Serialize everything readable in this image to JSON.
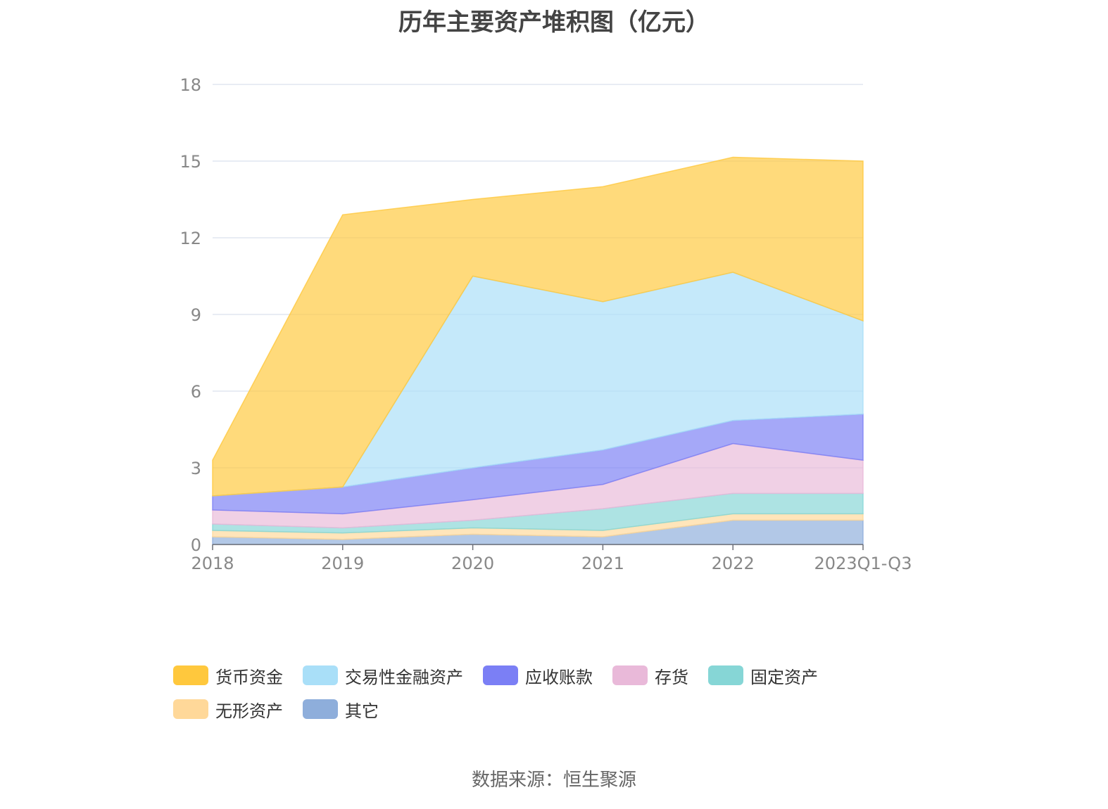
{
  "chart_data": {
    "type": "area",
    "stacked": true,
    "title": "历年主要资产堆积图（亿元）",
    "categories": [
      "2018",
      "2019",
      "2020",
      "2021",
      "2022",
      "2023Q1-Q3"
    ],
    "ylim": [
      0,
      18
    ],
    "yticks": [
      "0",
      "3",
      "6",
      "9",
      "12",
      "15",
      "18"
    ],
    "grid": true,
    "legend_position": "bottom",
    "series": [
      {
        "name": "其它",
        "color": "#8eaedb",
        "values": [
          0.3,
          0.2,
          0.4,
          0.3,
          0.95,
          0.95
        ]
      },
      {
        "name": "无形资产",
        "color": "#ffd899",
        "values": [
          0.25,
          0.25,
          0.25,
          0.25,
          0.25,
          0.25
        ]
      },
      {
        "name": "固定资产",
        "color": "#86d6d6",
        "values": [
          0.25,
          0.2,
          0.3,
          0.85,
          0.8,
          0.8
        ]
      },
      {
        "name": "存货",
        "color": "#e9b9d9",
        "values": [
          0.55,
          0.55,
          0.8,
          0.95,
          1.95,
          1.3
        ]
      },
      {
        "name": "应收账款",
        "color": "#7b7ff5",
        "values": [
          0.55,
          1.05,
          1.25,
          1.35,
          0.9,
          1.8
        ]
      },
      {
        "name": "交易性金融资产",
        "color": "#a9dff8",
        "values": [
          0.0,
          0.0,
          7.5,
          5.8,
          5.8,
          3.65
        ]
      },
      {
        "name": "货币资金",
        "color": "#ffc83d",
        "values": [
          1.4,
          10.65,
          3.0,
          4.5,
          4.5,
          6.25
        ]
      }
    ],
    "legend_order": [
      "货币资金",
      "交易性金融资产",
      "应收账款",
      "存货",
      "固定资产",
      "无形资产",
      "其它"
    ]
  },
  "source": "数据来源：恒生聚源"
}
